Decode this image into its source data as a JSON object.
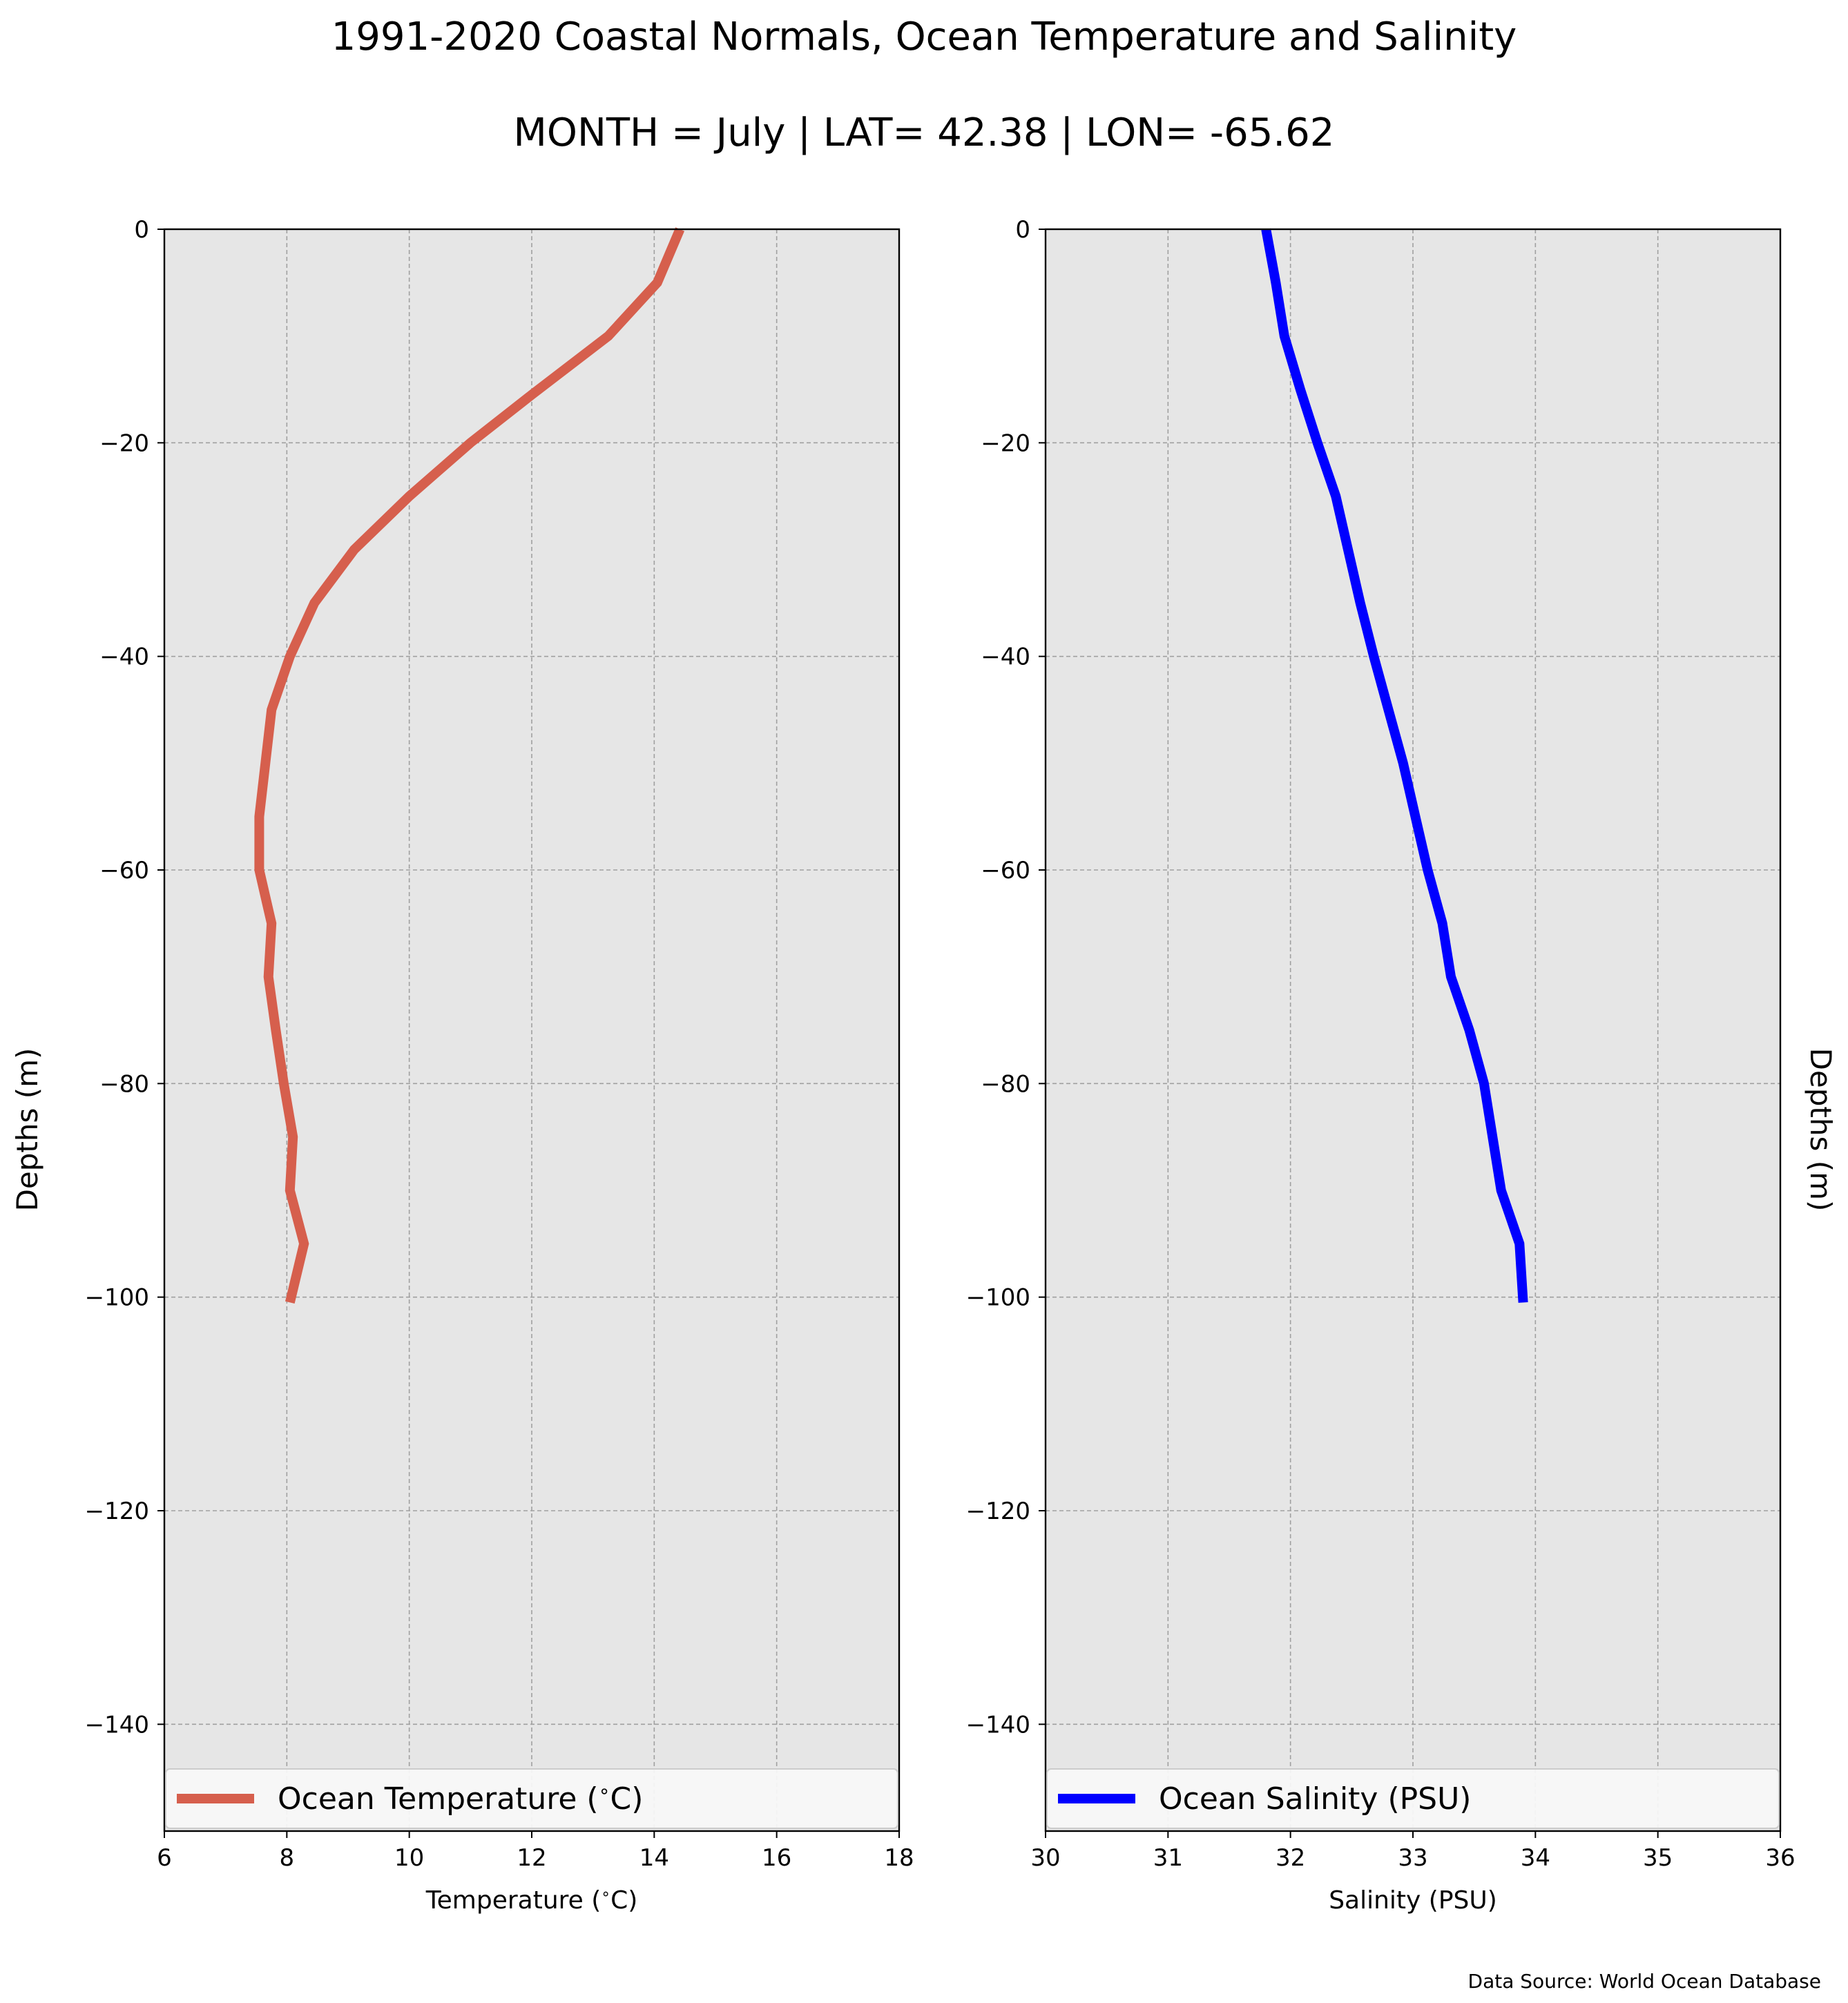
{
  "title": "1991-2020 Coastal Normals, Ocean Temperature and Salinity",
  "subtitle": "MONTH = July | LAT= 42.38 | LON= -65.62",
  "source_note": "Data Source: World Ocean Database",
  "colors": {
    "background": "#ffffff",
    "plot_bg": "#e6e6e6",
    "grid": "#a0a0a0",
    "temperature": "#d65f4d",
    "salinity": "#0000ff"
  },
  "chart_data": [
    {
      "type": "line",
      "xlabel": "Temperature ($^\\circ$C)",
      "ylabel": "Depths (m)",
      "xlim": [
        6,
        18
      ],
      "ylim": [
        -150,
        0
      ],
      "xticks": [
        6,
        8,
        10,
        12,
        14,
        16,
        18
      ],
      "xtick_labels": [
        "6",
        "8",
        "10",
        "12",
        "14",
        "16",
        "18"
      ],
      "yticks": [
        0,
        -20,
        -40,
        -60,
        -80,
        -100,
        -120,
        -140
      ],
      "ytick_labels": [
        "0",
        "−20",
        "−40",
        "−60",
        "−80",
        "−100",
        "−120",
        "−140"
      ],
      "grid": true,
      "legend_position": "bottom",
      "series": [
        {
          "name": "Ocean Temperature ($^\\circ$C)",
          "color": "#d65f4d",
          "x": [
            14.42,
            14.05,
            13.25,
            12.0,
            11.0,
            10.0,
            9.1,
            8.45,
            8.05,
            7.75,
            7.65,
            7.55,
            7.55,
            7.75,
            7.7,
            7.82,
            7.95,
            8.1,
            8.05,
            8.28,
            8.05
          ],
          "y": [
            0,
            -5,
            -10,
            -15.5,
            -20,
            -25,
            -30,
            -35,
            -40,
            -45,
            -50,
            -55,
            -60,
            -65,
            -70,
            -75,
            -80,
            -85,
            -90,
            -95,
            -100.5
          ]
        }
      ]
    },
    {
      "type": "line",
      "xlabel": "Salinity (PSU)",
      "ylabel": "Depths (m)",
      "xlim": [
        30,
        36
      ],
      "ylim": [
        -150,
        0
      ],
      "xticks": [
        30,
        31,
        32,
        33,
        34,
        35,
        36
      ],
      "xtick_labels": [
        "30",
        "31",
        "32",
        "33",
        "34",
        "35",
        "36"
      ],
      "yticks": [
        0,
        -20,
        -40,
        -60,
        -80,
        -100,
        -120,
        -140
      ],
      "ytick_labels": [
        "0",
        "−20",
        "−40",
        "−60",
        "−80",
        "−100",
        "−120",
        "−140"
      ],
      "grid": true,
      "legend_position": "bottom",
      "series": [
        {
          "name": "Ocean Salinity (PSU)",
          "color": "#0000ff",
          "x": [
            31.8,
            31.88,
            31.95,
            32.08,
            32.22,
            32.37,
            32.47,
            32.57,
            32.68,
            32.8,
            32.92,
            33.02,
            33.12,
            33.24,
            33.31,
            33.46,
            33.58,
            33.65,
            33.72,
            33.87,
            33.9
          ],
          "y": [
            0,
            -5,
            -10,
            -15,
            -20,
            -25,
            -30,
            -35,
            -40,
            -45,
            -50,
            -55,
            -60,
            -65,
            -70,
            -75,
            -80,
            -85,
            -90,
            -95,
            -100.5
          ]
        }
      ]
    }
  ]
}
